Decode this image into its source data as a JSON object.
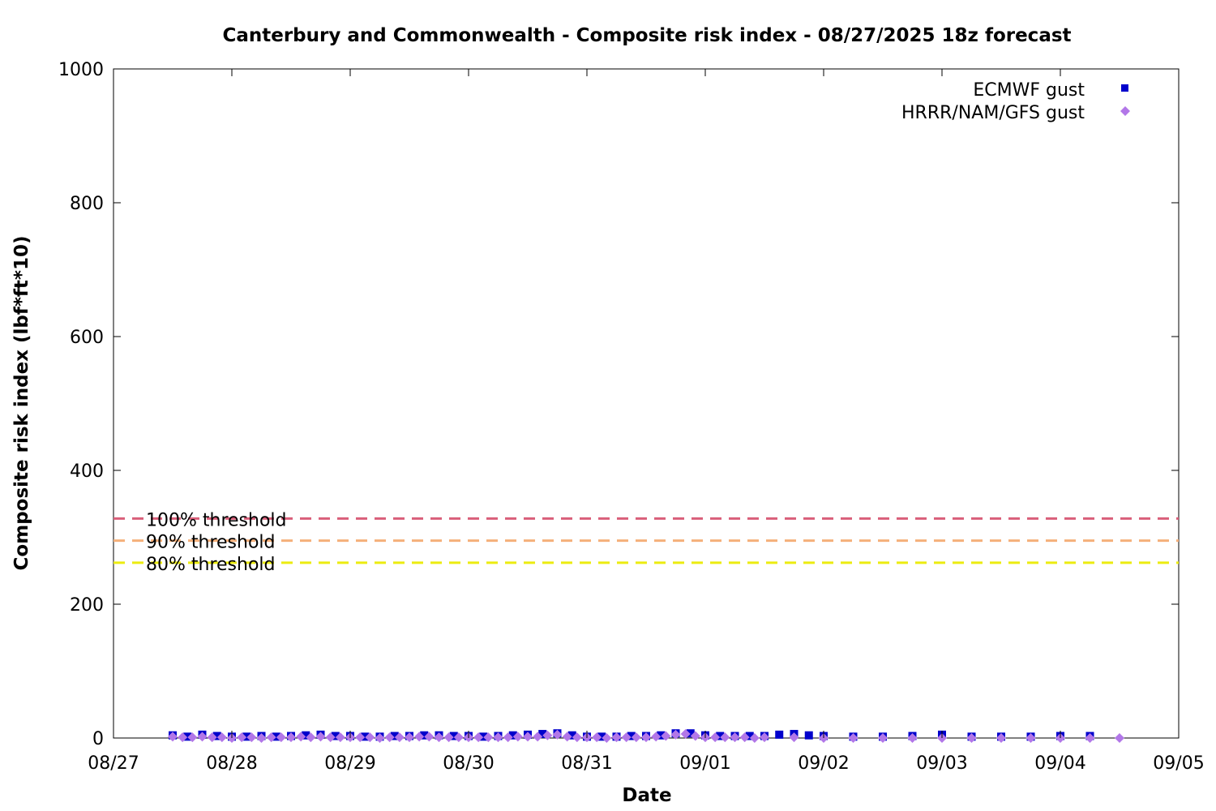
{
  "chart_data": {
    "type": "scatter",
    "title": "Canterbury and Commonwealth - Composite risk index - 08/27/2025 18z forecast",
    "xlabel": "Date",
    "ylabel": "Composite risk index (lbf*ft*10)",
    "x_ticks": [
      "08/27",
      "08/28",
      "08/29",
      "08/30",
      "08/31",
      "09/01",
      "09/02",
      "09/03",
      "09/04",
      "09/05"
    ],
    "y_ticks": [
      "0",
      "200",
      "400",
      "600",
      "800",
      "1000"
    ],
    "ylim": [
      0,
      1000
    ],
    "xlim": [
      "2025-08-27",
      "2025-09-05"
    ],
    "legend_position": "top-right",
    "grid": false,
    "thresholds": [
      {
        "label": "100% threshold",
        "value": 328,
        "color": "#d95f7a"
      },
      {
        "label": "90% threshold",
        "value": 295,
        "color": "#f5b07a"
      },
      {
        "label": "80% threshold",
        "value": 262,
        "color": "#ecec10"
      }
    ],
    "series": [
      {
        "name": "ECMWF gust",
        "marker": "square",
        "color": "#0000cc",
        "x": [
          "2025-08-27 12:00",
          "2025-08-27 15:00",
          "2025-08-27 18:00",
          "2025-08-27 21:00",
          "2025-08-28 00:00",
          "2025-08-28 03:00",
          "2025-08-28 06:00",
          "2025-08-28 09:00",
          "2025-08-28 12:00",
          "2025-08-28 15:00",
          "2025-08-28 18:00",
          "2025-08-28 21:00",
          "2025-08-29 00:00",
          "2025-08-29 03:00",
          "2025-08-29 06:00",
          "2025-08-29 09:00",
          "2025-08-29 12:00",
          "2025-08-29 15:00",
          "2025-08-29 18:00",
          "2025-08-29 21:00",
          "2025-08-30 00:00",
          "2025-08-30 03:00",
          "2025-08-30 06:00",
          "2025-08-30 09:00",
          "2025-08-30 12:00",
          "2025-08-30 15:00",
          "2025-08-30 18:00",
          "2025-08-30 21:00",
          "2025-08-31 00:00",
          "2025-08-31 03:00",
          "2025-08-31 06:00",
          "2025-08-31 09:00",
          "2025-08-31 12:00",
          "2025-08-31 15:00",
          "2025-08-31 18:00",
          "2025-08-31 21:00",
          "2025-09-01 00:00",
          "2025-09-01 03:00",
          "2025-09-01 06:00",
          "2025-09-01 09:00",
          "2025-09-01 12:00",
          "2025-09-01 15:00",
          "2025-09-01 18:00",
          "2025-09-01 21:00",
          "2025-09-02 00:00",
          "2025-09-02 06:00",
          "2025-09-02 12:00",
          "2025-09-02 18:00",
          "2025-09-03 00:00",
          "2025-09-03 06:00",
          "2025-09-03 12:00",
          "2025-09-03 18:00",
          "2025-09-04 00:00",
          "2025-09-04 06:00"
        ],
        "y": [
          4,
          2,
          5,
          3,
          2,
          2,
          3,
          2,
          3,
          4,
          5,
          3,
          3,
          2,
          2,
          3,
          3,
          4,
          4,
          3,
          3,
          2,
          3,
          4,
          5,
          6,
          7,
          4,
          2,
          2,
          2,
          3,
          3,
          4,
          7,
          7,
          4,
          3,
          3,
          3,
          3,
          5,
          6,
          4,
          3,
          2,
          2,
          3,
          5,
          2,
          2,
          2,
          3,
          3
        ]
      },
      {
        "name": "HRRR/NAM/GFS gust",
        "marker": "diamond",
        "color": "#b277e8",
        "x": [
          "2025-08-27 12:00",
          "2025-08-27 14:00",
          "2025-08-27 16:00",
          "2025-08-27 18:00",
          "2025-08-27 20:00",
          "2025-08-27 22:00",
          "2025-08-28 00:00",
          "2025-08-28 02:00",
          "2025-08-28 04:00",
          "2025-08-28 06:00",
          "2025-08-28 08:00",
          "2025-08-28 10:00",
          "2025-08-28 12:00",
          "2025-08-28 14:00",
          "2025-08-28 16:00",
          "2025-08-28 18:00",
          "2025-08-28 20:00",
          "2025-08-28 22:00",
          "2025-08-29 00:00",
          "2025-08-29 02:00",
          "2025-08-29 04:00",
          "2025-08-29 06:00",
          "2025-08-29 08:00",
          "2025-08-29 10:00",
          "2025-08-29 12:00",
          "2025-08-29 14:00",
          "2025-08-29 16:00",
          "2025-08-29 18:00",
          "2025-08-29 20:00",
          "2025-08-29 22:00",
          "2025-08-30 00:00",
          "2025-08-30 02:00",
          "2025-08-30 04:00",
          "2025-08-30 06:00",
          "2025-08-30 08:00",
          "2025-08-30 10:00",
          "2025-08-30 12:00",
          "2025-08-30 14:00",
          "2025-08-30 16:00",
          "2025-08-30 18:00",
          "2025-08-30 20:00",
          "2025-08-30 22:00",
          "2025-08-31 00:00",
          "2025-08-31 02:00",
          "2025-08-31 04:00",
          "2025-08-31 06:00",
          "2025-08-31 08:00",
          "2025-08-31 10:00",
          "2025-08-31 12:00",
          "2025-08-31 14:00",
          "2025-08-31 16:00",
          "2025-08-31 18:00",
          "2025-08-31 20:00",
          "2025-08-31 22:00",
          "2025-09-01 00:00",
          "2025-09-01 02:00",
          "2025-09-01 04:00",
          "2025-09-01 06:00",
          "2025-09-01 08:00",
          "2025-09-01 10:00",
          "2025-09-01 12:00",
          "2025-09-01 18:00",
          "2025-09-02 00:00",
          "2025-09-02 06:00",
          "2025-09-02 12:00",
          "2025-09-02 18:00",
          "2025-09-03 00:00",
          "2025-09-03 06:00",
          "2025-09-03 12:00",
          "2025-09-03 18:00",
          "2025-09-04 00:00",
          "2025-09-04 06:00",
          "2025-09-04 12:00"
        ],
        "y": [
          2,
          1,
          1,
          2,
          1,
          1,
          0,
          1,
          1,
          0,
          1,
          1,
          1,
          2,
          1,
          2,
          1,
          1,
          1,
          1,
          1,
          0,
          1,
          1,
          1,
          2,
          2,
          1,
          1,
          1,
          1,
          1,
          1,
          1,
          1,
          2,
          2,
          2,
          4,
          5,
          2,
          1,
          1,
          1,
          0,
          1,
          1,
          1,
          1,
          2,
          3,
          5,
          6,
          3,
          1,
          1,
          1,
          1,
          1,
          0,
          1,
          1,
          0,
          0,
          0,
          0,
          0,
          0,
          0,
          0,
          0,
          0,
          0
        ]
      }
    ]
  }
}
